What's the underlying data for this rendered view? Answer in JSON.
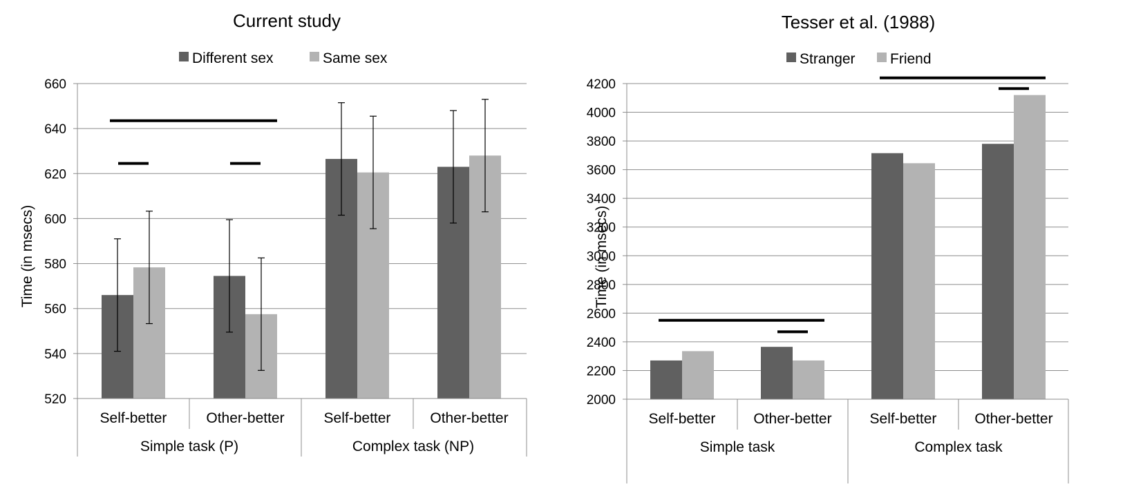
{
  "chart_data": [
    {
      "type": "bar",
      "title": "Current study",
      "ylabel": "Time (in msecs)",
      "xlabel": "",
      "ylim": [
        520,
        660
      ],
      "y_step": 20,
      "grid": true,
      "legend_position": "top",
      "categories": [
        "Self-better",
        "Other-better",
        "Self-better",
        "Other-better"
      ],
      "groups": [
        {
          "label": "Simple task (P)",
          "span": [
            0,
            1
          ]
        },
        {
          "label": "Complex task (NP)",
          "span": [
            2,
            3
          ]
        }
      ],
      "series": [
        {
          "name": "Different sex",
          "color": "#606060",
          "values": [
            566,
            574.5,
            626.5,
            623
          ],
          "error": [
            25,
            25,
            25,
            25
          ]
        },
        {
          "name": "Same sex",
          "color": "#b3b3b3",
          "values": [
            578.3,
            557.5,
            620.5,
            628
          ],
          "error": [
            25,
            25,
            25,
            25
          ]
        }
      ],
      "significance_lines": [
        {
          "from_category": 0,
          "to_category": 1,
          "y": 643.5
        },
        {
          "from_category": 0,
          "y": 624.5
        },
        {
          "from_category": 1,
          "y": 624.5
        }
      ]
    },
    {
      "type": "bar",
      "title": "Tesser et al. (1988)",
      "ylabel": "Time (in msecs)",
      "xlabel": "",
      "ylim": [
        2000,
        4200
      ],
      "y_step": 200,
      "grid": true,
      "legend_position": "top",
      "categories": [
        "Self-better",
        "Other-better",
        "Self-better",
        "Other-better"
      ],
      "groups": [
        {
          "label": "Simple task",
          "span": [
            0,
            1
          ]
        },
        {
          "label": "Complex task",
          "span": [
            2,
            3
          ]
        }
      ],
      "series": [
        {
          "name": "Stranger",
          "color": "#606060",
          "values": [
            2270,
            2365,
            3715,
            3780
          ]
        },
        {
          "name": "Friend",
          "color": "#b3b3b3",
          "values": [
            2335,
            2270,
            3645,
            4120
          ]
        }
      ],
      "significance_lines": [
        {
          "from_category": 0,
          "to_category": 1,
          "y": 2550
        },
        {
          "from_category": 1,
          "y": 2470
        },
        {
          "from_category": 2,
          "to_category": 3,
          "y": 4240
        },
        {
          "from_category": 3,
          "y": 4165
        }
      ]
    }
  ]
}
